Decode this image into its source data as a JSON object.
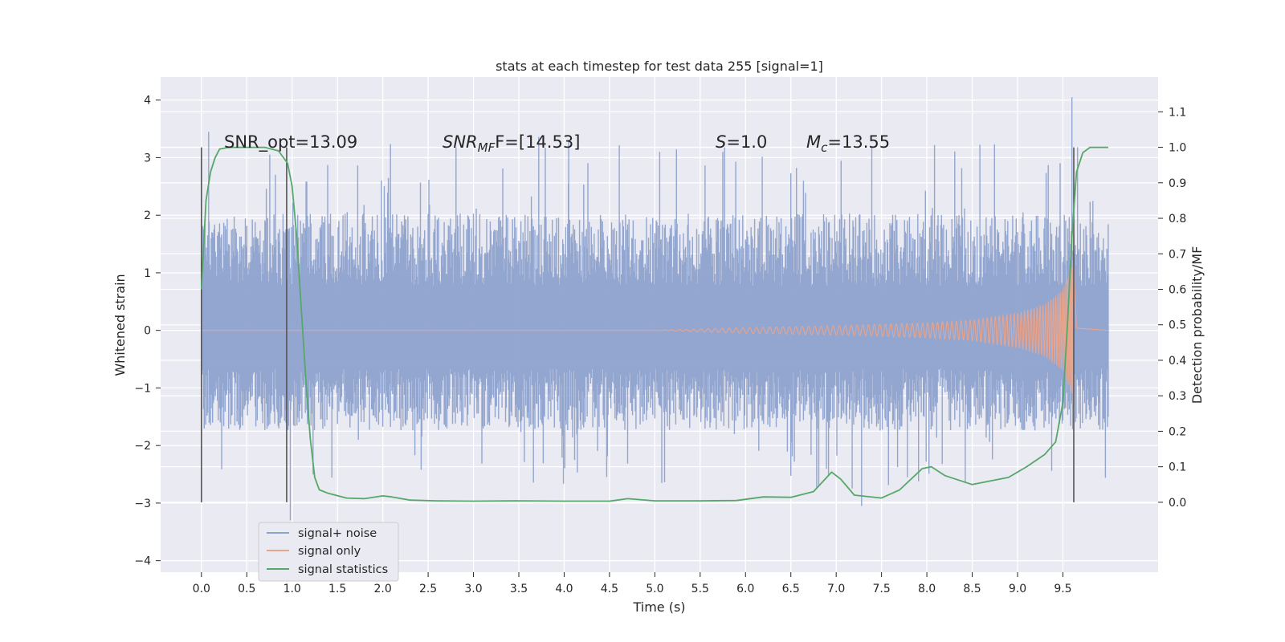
{
  "chart_data": {
    "type": "line",
    "title": "stats at each timestep for test data 255 [signal=1]",
    "xlabel": "Time (s)",
    "ylabel": "Whitened strain",
    "y2label": "Detection probability/MF",
    "xlim": [
      -0.45,
      10.55
    ],
    "ylim": [
      -4.2,
      4.4
    ],
    "y2lim": [
      -0.197,
      1.198
    ],
    "x_ticks": [
      "0.0",
      "0.5",
      "1.0",
      "1.5",
      "2.0",
      "2.5",
      "3.0",
      "3.5",
      "4.0",
      "4.5",
      "5.0",
      "5.5",
      "6.0",
      "6.5",
      "7.0",
      "7.5",
      "8.0",
      "8.5",
      "9.0",
      "9.5"
    ],
    "y_ticks": [
      "4",
      "3",
      "2",
      "1",
      "0",
      "−1",
      "−2",
      "−3",
      "−4"
    ],
    "y2_ticks": [
      "1.1",
      "1.0",
      "0.9",
      "0.8",
      "0.7",
      "0.6",
      "0.5",
      "0.4",
      "0.3",
      "0.2",
      "0.1",
      "0.0"
    ],
    "grid": true,
    "legend_position": "bottom-left",
    "annotations": {
      "snr_opt": "SNR_opt=13.09",
      "snr_mf_base": "SNR",
      "snr_mf_sub": "MF",
      "snr_mf_tail": "F=[14.53]",
      "s_name": "S",
      "s_value": "=1.0",
      "mc_base": "M",
      "mc_sub": "c",
      "mc_value": "=13.55"
    },
    "vertical_markers_x": [
      0.0,
      0.94,
      9.62
    ],
    "series": [
      {
        "name": "signal+ noise",
        "color": "#8ea2ce",
        "x_range": [
          0.0,
          10.0
        ],
        "envelope_upper_typical": 1.4,
        "envelope_lower_typical": -1.2,
        "peak_max": 4.05,
        "peak_min": -3.05
      },
      {
        "name": "signal only",
        "color": "#e8a48c",
        "description_points": {
          "x": [
            0.0,
            5.0,
            6.0,
            7.0,
            8.0,
            8.5,
            9.0,
            9.3,
            9.5,
            9.6,
            9.62,
            9.65,
            10.0
          ],
          "amplitude": [
            0.0,
            0.0,
            0.05,
            0.08,
            0.13,
            0.18,
            0.3,
            0.45,
            0.7,
            1.1,
            1.4,
            0.05,
            0.0
          ]
        }
      },
      {
        "name": "signal statistics",
        "color": "#55a868",
        "axis": "right",
        "x": [
          0.0,
          0.05,
          0.1,
          0.15,
          0.2,
          0.3,
          0.5,
          0.7,
          0.85,
          0.95,
          1.0,
          1.05,
          1.1,
          1.15,
          1.2,
          1.25,
          1.3,
          1.4,
          1.6,
          1.8,
          2.0,
          2.1,
          2.3,
          2.6,
          3.0,
          3.5,
          4.0,
          4.5,
          4.7,
          5.0,
          5.5,
          5.9,
          6.2,
          6.5,
          6.75,
          6.95,
          7.05,
          7.2,
          7.5,
          7.7,
          7.95,
          8.05,
          8.2,
          8.5,
          8.9,
          9.1,
          9.3,
          9.42,
          9.5,
          9.55,
          9.6,
          9.65,
          9.72,
          9.8,
          9.85,
          9.9,
          10.0
        ],
        "y": [
          0.6,
          0.85,
          0.93,
          0.97,
          0.995,
          1.0,
          1.0,
          1.0,
          0.99,
          0.955,
          0.89,
          0.75,
          0.55,
          0.35,
          0.18,
          0.07,
          0.035,
          0.025,
          0.012,
          0.01,
          0.018,
          0.015,
          0.006,
          0.004,
          0.003,
          0.004,
          0.003,
          0.003,
          0.01,
          0.004,
          0.004,
          0.005,
          0.015,
          0.014,
          0.03,
          0.085,
          0.065,
          0.02,
          0.012,
          0.035,
          0.095,
          0.1,
          0.075,
          0.05,
          0.07,
          0.1,
          0.135,
          0.17,
          0.28,
          0.5,
          0.75,
          0.93,
          0.985,
          1.0,
          1.0,
          1.0,
          1.0
        ]
      }
    ]
  }
}
